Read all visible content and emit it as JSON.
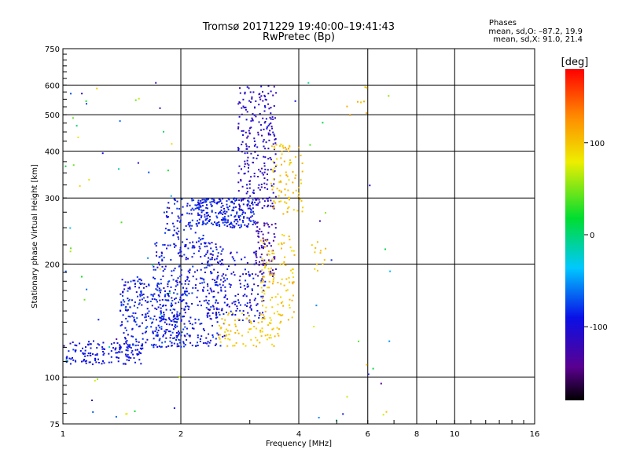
{
  "header": {
    "title_line1": "Tromsø 20171229 19:40:00–19:41:43",
    "title_line2": "RwPretec (Bp)"
  },
  "info": {
    "title": "Phases",
    "line_o": "mean, sd,O: –87.2, 19.9",
    "line_x": "mean, sd,X:  91.0, 21.4"
  },
  "chart_data": {
    "type": "scatter",
    "xlabel": "Frequency [MHz]",
    "ylabel": "Stationary phase Virtual Height [km]",
    "xscale": "log",
    "yscale": "log",
    "xlim": [
      1,
      16
    ],
    "ylim": [
      75,
      750
    ],
    "x_ticks": [
      1,
      2,
      4,
      6,
      8,
      10,
      16
    ],
    "y_ticks": [
      75,
      100,
      200,
      300,
      400,
      500,
      600,
      750
    ],
    "grid": true,
    "colorbar": {
      "label": "[deg]",
      "range": [
        -180,
        180
      ],
      "ticks": [
        100,
        0,
        -100
      ]
    },
    "series": [
      {
        "clusters": [
          {
            "x": [
              1.02,
              1.6
            ],
            "y": [
              108,
              125
            ],
            "phase": [
              -100,
              -85
            ],
            "n": 150
          },
          {
            "x": [
              1.4,
              2.1
            ],
            "y": [
              120,
              185
            ],
            "phase": [
              -105,
              -70
            ],
            "n": 320
          },
          {
            "x": [
              1.7,
              2.6
            ],
            "y": [
              120,
              230
            ],
            "phase": [
              -110,
              -75
            ],
            "n": 320
          },
          {
            "x": [
              1.8,
              2.3
            ],
            "y": [
              220,
              300
            ],
            "phase": [
              -100,
              -75
            ],
            "n": 100
          },
          {
            "x": [
              2.2,
              3.1
            ],
            "y": [
              250,
              300
            ],
            "phase": [
              -100,
              -75
            ],
            "n": 220
          },
          {
            "x": [
              2.3,
              3.3
            ],
            "y": [
              140,
              215
            ],
            "phase": [
              -115,
              -80
            ],
            "n": 180
          },
          {
            "x": [
              2.8,
              3.5
            ],
            "y": [
              280,
              600
            ],
            "phase": [
              -125,
              -95
            ],
            "n": 260
          },
          {
            "x": [
              3.1,
              3.5
            ],
            "y": [
              185,
              260
            ],
            "phase": [
              -140,
              -110
            ],
            "n": 80
          }
        ]
      },
      {
        "clusters": [
          {
            "x": [
              2.5,
              3.6
            ],
            "y": [
              120,
              150
            ],
            "phase": [
              85,
              110
            ],
            "n": 90
          },
          {
            "x": [
              3.2,
              3.9
            ],
            "y": [
              140,
              240
            ],
            "phase": [
              85,
              115
            ],
            "n": 110
          },
          {
            "x": [
              3.4,
              4.1
            ],
            "y": [
              270,
              420
            ],
            "phase": [
              90,
              115
            ],
            "n": 90
          },
          {
            "x": [
              4.2,
              4.7
            ],
            "y": [
              190,
              230
            ],
            "phase": [
              95,
              110
            ],
            "n": 12
          },
          {
            "x": [
              5.0,
              6.5
            ],
            "y": [
              480,
              600
            ],
            "phase": [
              95,
              115
            ],
            "n": 8
          }
        ]
      },
      {
        "clusters": [
          {
            "x": [
              1.0,
              2.0
            ],
            "y": [
              75,
              620
            ],
            "phase": [
              -140,
              100
            ],
            "n": 60
          },
          {
            "x": [
              3.9,
              7.0
            ],
            "y": [
              75,
              620
            ],
            "phase": [
              -140,
              110
            ],
            "n": 25
          }
        ]
      }
    ]
  }
}
